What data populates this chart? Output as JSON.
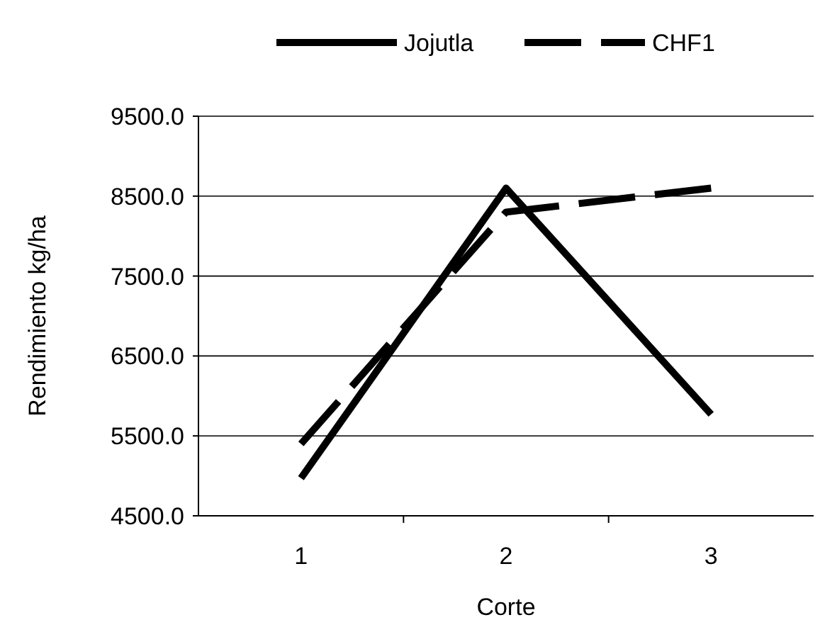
{
  "chart_data": {
    "type": "line",
    "xlabel": "Corte",
    "ylabel": "Rendimiento kg/ha",
    "categories": [
      "1",
      "2",
      "3"
    ],
    "series": [
      {
        "name": "Jojutla",
        "color": "#000000",
        "values": [
          4970,
          8600,
          5770
        ],
        "line_style": "solid"
      },
      {
        "name": "CHF1",
        "color": "#000000",
        "values": [
          5400,
          8300,
          8600
        ],
        "line_style": "dashed"
      }
    ],
    "ylim": [
      4500,
      9500
    ],
    "yticks": [
      {
        "value": 4500,
        "label": "4500.0"
      },
      {
        "value": 5500,
        "label": "5500.0"
      },
      {
        "value": 6500,
        "label": "6500.0"
      },
      {
        "value": 7500,
        "label": "7500.0"
      },
      {
        "value": 8500,
        "label": "8500.0"
      },
      {
        "value": 9500,
        "label": "9500.0"
      }
    ],
    "grid": "y",
    "legend": "top"
  }
}
